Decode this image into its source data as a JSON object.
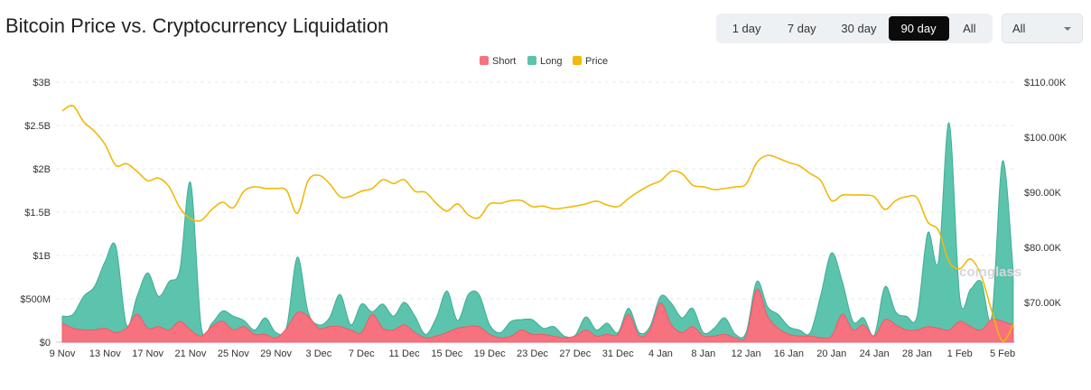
{
  "header": {
    "title": "Bitcoin Price vs. Cryptocurrency Liquidation",
    "ranges": [
      "1 day",
      "7 day",
      "30 day",
      "90 day",
      "All"
    ],
    "active_range": "90 day",
    "filter": "All"
  },
  "colors": {
    "short": "#f6727e",
    "long": "#5cc3ac",
    "price": "#f0b90b"
  },
  "watermark": "coinglass",
  "chart_data": {
    "type": "area",
    "title": "Bitcoin Price vs. Cryptocurrency Liquidation",
    "legend": [
      "Short",
      "Long",
      "Price"
    ],
    "legend_position": "top-center",
    "x_start": "9 Nov",
    "days": 90,
    "x_ticks": [
      "9 Nov",
      "13 Nov",
      "17 Nov",
      "21 Nov",
      "25 Nov",
      "29 Nov",
      "3 Dec",
      "7 Dec",
      "11 Dec",
      "15 Dec",
      "19 Dec",
      "23 Dec",
      "27 Dec",
      "31 Dec",
      "4 Jan",
      "8 Jan",
      "12 Jan",
      "16 Jan",
      "20 Jan",
      "24 Jan",
      "28 Jan",
      "1 Feb",
      "5 Feb"
    ],
    "y_left_ticks": [
      "$0",
      "$500M",
      "$1B",
      "$1.5B",
      "$2B",
      "$2.5B",
      "$3B"
    ],
    "y_left_range_billions": [
      0,
      3
    ],
    "y_right_ticks": [
      "$70.00K",
      "$80.00K",
      "$90.00K",
      "$100.00K",
      "$110.00K"
    ],
    "y_right_range_thousands": [
      62.8,
      110
    ],
    "grid": true,
    "series": [
      {
        "name": "Short",
        "unit": "B USD",
        "values": [
          0.22,
          0.16,
          0.14,
          0.14,
          0.16,
          0.11,
          0.16,
          0.32,
          0.16,
          0.18,
          0.14,
          0.24,
          0.14,
          0.07,
          0.18,
          0.24,
          0.14,
          0.18,
          0.09,
          0.09,
          0.05,
          0.16,
          0.34,
          0.3,
          0.16,
          0.18,
          0.18,
          0.14,
          0.11,
          0.32,
          0.16,
          0.14,
          0.2,
          0.11,
          0.05,
          0.07,
          0.11,
          0.16,
          0.18,
          0.18,
          0.09,
          0.05,
          0.07,
          0.14,
          0.09,
          0.09,
          0.07,
          0.05,
          0.07,
          0.14,
          0.07,
          0.09,
          0.09,
          0.32,
          0.07,
          0.14,
          0.45,
          0.2,
          0.11,
          0.18,
          0.07,
          0.07,
          0.09,
          0.05,
          0.07,
          0.61,
          0.3,
          0.16,
          0.09,
          0.07,
          0.07,
          0.05,
          0.07,
          0.32,
          0.14,
          0.2,
          0.07,
          0.26,
          0.2,
          0.14,
          0.14,
          0.18,
          0.16,
          0.14,
          0.24,
          0.18,
          0.14,
          0.26,
          0.24,
          0.2
        ]
      },
      {
        "name": "Long",
        "unit": "B USD",
        "values": [
          0.08,
          0.16,
          0.39,
          0.5,
          0.77,
          1.0,
          0.04,
          0.21,
          0.64,
          0.35,
          0.56,
          0.6,
          1.7,
          0.11,
          0.04,
          0.12,
          0.16,
          0.07,
          0.05,
          0.19,
          0.06,
          0.02,
          0.64,
          0.05,
          0.04,
          0.1,
          0.37,
          0.06,
          0.33,
          0.03,
          0.28,
          0.16,
          0.26,
          0.19,
          0.04,
          0.21,
          0.48,
          0.09,
          0.37,
          0.37,
          0.11,
          0.06,
          0.17,
          0.12,
          0.17,
          0.07,
          0.11,
          0.02,
          0.01,
          0.15,
          0.07,
          0.13,
          0.02,
          0.07,
          0.04,
          0.04,
          0.08,
          0.25,
          0.17,
          0.21,
          0.04,
          0.09,
          0.19,
          0.04,
          0.04,
          0.09,
          0.11,
          0.16,
          0.09,
          0.07,
          0.04,
          0.5,
          0.96,
          0.38,
          0.1,
          0.08,
          0.01,
          0.38,
          0.15,
          0.16,
          0.16,
          1.08,
          0.77,
          2.39,
          0.27,
          0.43,
          0.56,
          0.04,
          1.85,
          0.62
        ]
      },
      {
        "name": "Price",
        "unit": "K USD",
        "values": [
          104.8,
          105.7,
          102.8,
          101.1,
          98.7,
          94.9,
          95.2,
          93.8,
          92.1,
          92.6,
          91.0,
          87.2,
          85.2,
          84.9,
          86.9,
          88.2,
          87.2,
          90.2,
          91.0,
          90.7,
          90.7,
          90.3,
          86.2,
          92.1,
          93.1,
          91.6,
          89.2,
          89.3,
          90.2,
          90.7,
          92.3,
          91.6,
          92.3,
          90.2,
          90.0,
          88.0,
          86.6,
          87.9,
          85.9,
          85.4,
          87.9,
          88.0,
          88.5,
          88.5,
          87.4,
          87.5,
          87.0,
          87.2,
          87.5,
          87.9,
          88.4,
          87.7,
          87.4,
          88.9,
          90.2,
          91.3,
          92.1,
          93.8,
          93.4,
          91.3,
          91.0,
          90.5,
          90.7,
          91.0,
          91.5,
          95.4,
          96.7,
          96.2,
          95.4,
          94.8,
          93.4,
          92.1,
          88.5,
          89.5,
          89.5,
          89.5,
          89.2,
          86.9,
          88.5,
          89.2,
          89.0,
          84.6,
          83.1,
          77.4,
          76.1,
          77.9,
          74.9,
          68.4,
          63.0,
          66.0
        ]
      }
    ]
  }
}
